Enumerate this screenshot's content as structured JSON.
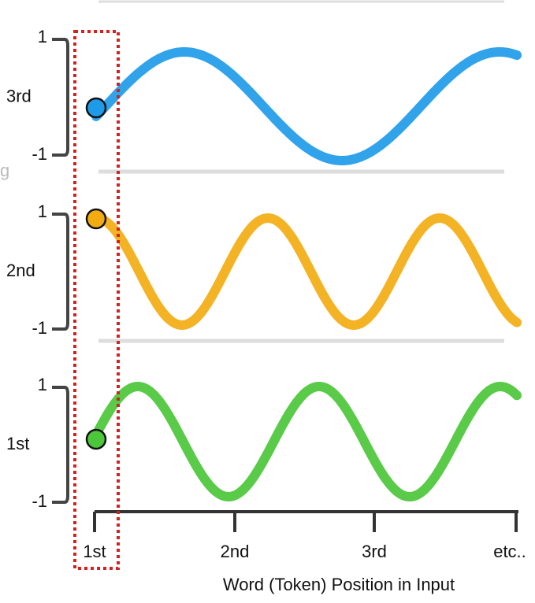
{
  "panels": [
    {
      "label": "3rd",
      "max": "1",
      "min": "-1"
    },
    {
      "label": "2nd",
      "max": "1",
      "min": "-1"
    },
    {
      "label": "1st",
      "max": "1",
      "min": "-1"
    }
  ],
  "fragment": "g",
  "x_axis": {
    "ticks": [
      "1st",
      "2nd",
      "3rd",
      "etc.."
    ],
    "title": "Word (Token) Position in Input"
  }
}
